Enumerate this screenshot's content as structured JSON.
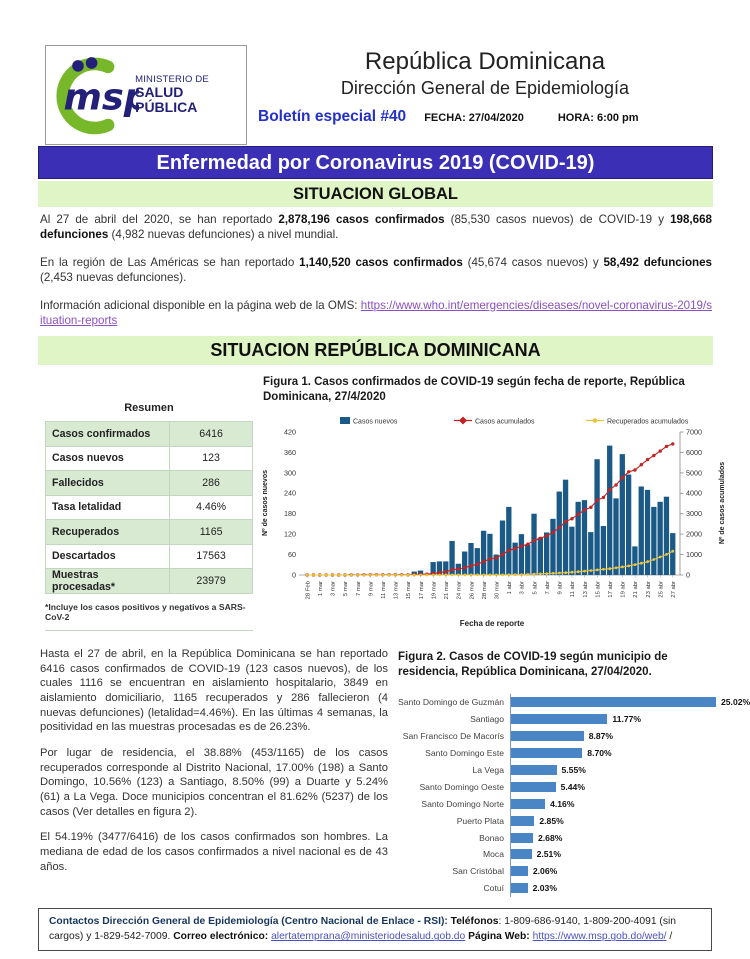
{
  "header": {
    "logo": {
      "acronym": "msp",
      "line1": "MINISTERIO DE",
      "line2": "SALUD PÚBLICA"
    },
    "title": "República Dominicana",
    "subtitle": "Dirección General de Epidemiología",
    "bulletin": "Boletín especial #40",
    "date_label": "FECHA: 27/04/2020",
    "time_label": "HORA: 6:00 pm"
  },
  "banners": {
    "main": "Enfermedad por Coronavirus 2019 (COVID-19)",
    "global": "SITUACION GLOBAL",
    "dominican": "SITUACION REPÚBLICA DOMINICANA"
  },
  "global_section": {
    "paragraphs": [
      [
        {
          "t": "Al 27 de abril del 2020, se han reportado ",
          "s": "p"
        },
        {
          "t": "2,878,196 casos confirmados",
          "s": "b"
        },
        {
          "t": " (85,530 casos nuevos) de COVID-19 y ",
          "s": "p"
        },
        {
          "t": "198,668 defunciones",
          "s": "b"
        },
        {
          "t": " (4,982 nuevas defunciones) a nivel mundial.",
          "s": "p"
        }
      ],
      [
        {
          "t": "En la región de Las Américas se han reportado ",
          "s": "p"
        },
        {
          "t": "1,140,520 casos confirmados",
          "s": "b"
        },
        {
          "t": " (45,674 casos nuevos) y ",
          "s": "p"
        },
        {
          "t": "58,492 defunciones",
          "s": "b"
        },
        {
          "t": " (2,453 nuevas defunciones).",
          "s": "p"
        }
      ],
      [
        {
          "t": "Información adicional disponible en la página web de la OMS: ",
          "s": "p"
        },
        {
          "t": "https://www.who.int/emergencies/diseases/novel-coronavirus-2019/situation-reports",
          "s": "l",
          "name": "oms-link"
        }
      ]
    ]
  },
  "resumen": {
    "title": "Resumen",
    "rows": [
      [
        "Casos confirmados",
        "6416"
      ],
      [
        "Casos nuevos",
        "123"
      ],
      [
        "Fallecidos",
        "286"
      ],
      [
        "Tasa letalidad",
        "4.46%"
      ],
      [
        "Recuperados",
        "1165"
      ],
      [
        "Descartados",
        "17563"
      ],
      [
        "Muestras procesadas*",
        "23979"
      ]
    ],
    "footnote": "*Incluye los casos positivos y negativos a SARS-CoV-2"
  },
  "dominican_section": {
    "paragraphs": [
      "Hasta el 27 de abril, en la República Dominicana se han reportado 6416 casos confirmados de COVID-19 (123 casos nuevos), de los cuales 1116 se encuentran en aislamiento hospitalario, 3849 en aislamiento domiciliario, 1165 recuperados y 286 fallecieron (4 nuevas defunciones) (letalidad=4.46%). En las últimas 4 semanas, la positividad en las muestras procesadas es de 26.23%.",
      "Por lugar de residencia, el 38.88% (453/1165) de los casos recuperados corresponde al Distrito Nacional, 17.00% (198) a Santo Domingo, 10.56% (123) a Santiago, 8.50% (99) a Duarte y 5.24% (61) a La Vega. Doce municipios concentran el 81.62% (5237) de los casos (Ver detalles en figura 2).",
      "El 54.19% (3477/6416) de los casos confirmados son hombres. La mediana de edad de los casos confirmados a nivel nacional es de 43 años."
    ]
  },
  "chart_data": [
    {
      "type": "bar",
      "title": "Figura 1. Casos confirmados de COVID-19 según fecha de reporte, República Dominicana, 27/4/2020",
      "xlabel": "Fecha de reporte",
      "ylabel_left": "Nº de casos nuevos",
      "ylabel_right": "Nº de casos acumulados",
      "ylim_left": [
        0,
        420
      ],
      "ytick_step_left": 60,
      "ylim_right": [
        0,
        7000
      ],
      "ytick_step_right": 1000,
      "x_tick_labels": [
        "28 Feb",
        "1 mar",
        "3 mar",
        "5 mar",
        "7 mar",
        "9 mar",
        "11 mar",
        "13 mar",
        "15 mar",
        "17 mar",
        "19 mar",
        "21 mar",
        "24 mar",
        "26 mar",
        "28 mar",
        "30 mar",
        "1 abr",
        "3 abr",
        "5 abr",
        "7 abr",
        "9 abr",
        "11 abr",
        "13 abr",
        "15 abr",
        "17 abr",
        "19 abr",
        "21 abr",
        "23 abr",
        "25 abr",
        "27 abr"
      ],
      "series": [
        {
          "name": "Casos nuevos",
          "type": "bar",
          "axis": "left",
          "color": "#1b5a86",
          "values": [
            0,
            0,
            1,
            0,
            1,
            0,
            0,
            3,
            0,
            3,
            0,
            0,
            0,
            0,
            0,
            3,
            0,
            10,
            13,
            4,
            38,
            40,
            40,
            100,
            33,
            69,
            94,
            79,
            130,
            121,
            60,
            160,
            200,
            95,
            120,
            90,
            180,
            110,
            125,
            165,
            245,
            280,
            142,
            215,
            220,
            126,
            340,
            144,
            380,
            225,
            355,
            295,
            84,
            260,
            250,
            200,
            215,
            230,
            123
          ]
        },
        {
          "name": "Casos acumulados",
          "type": "line",
          "axis": "right",
          "color": "#c42323",
          "values": [
            0,
            0,
            1,
            1,
            2,
            2,
            2,
            5,
            5,
            8,
            8,
            8,
            8,
            8,
            8,
            11,
            11,
            21,
            34,
            38,
            76,
            116,
            156,
            256,
            289,
            358,
            452,
            531,
            661,
            782,
            842,
            1002,
            1202,
            1297,
            1417,
            1507,
            1687,
            1797,
            1922,
            2087,
            2332,
            2612,
            2754,
            2969,
            3189,
            3315,
            3655,
            3799,
            4179,
            4404,
            4759,
            5054,
            5138,
            5398,
            5648,
            5848,
            6063,
            6293,
            6416
          ]
        },
        {
          "name": "Recuperados acumulados",
          "type": "line",
          "axis": "right",
          "color": "#e8c440",
          "values": [
            0,
            0,
            0,
            0,
            0,
            0,
            0,
            0,
            0,
            0,
            0,
            0,
            0,
            0,
            0,
            0,
            0,
            0,
            0,
            0,
            0,
            0,
            3,
            3,
            3,
            3,
            3,
            3,
            3,
            3,
            3,
            5,
            10,
            16,
            22,
            30,
            42,
            56,
            70,
            85,
            100,
            115,
            136,
            160,
            190,
            220,
            250,
            280,
            310,
            350,
            395,
            446,
            511,
            580,
            650,
            760,
            880,
            1010,
            1165
          ]
        }
      ]
    },
    {
      "type": "bar-horizontal",
      "title": "Figura 2. Casos de COVID-19 según municipio de residencia, República Dominicana, 27/04/2020.",
      "categories": [
        "Santo Domingo de Guzmán",
        "Santiago",
        "San Francisco De Macorís",
        "Santo Domingo Este",
        "La Vega",
        "Santo Domingo Oeste",
        "Santo Domingo Norte",
        "Puerto Plata",
        "Bonao",
        "Moca",
        "San Cristóbal",
        "Cotuí"
      ],
      "values": [
        25.02,
        11.77,
        8.87,
        8.7,
        5.55,
        5.44,
        4.16,
        2.85,
        2.68,
        2.51,
        2.06,
        2.03
      ],
      "value_labels": [
        "25.02%",
        "11.77%",
        "8.87%",
        "8.70%",
        "5.55%",
        "5.44%",
        "4.16%",
        "2.85%",
        "2.68%",
        "2.51%",
        "2.06%",
        "2.03%"
      ],
      "bar_color": "#4a86c5"
    }
  ],
  "footer": {
    "segments": [
      {
        "t": "Contactos Dirección General de Epidemiología (Centro Nacional de Enlace - RSI): ",
        "s": "bb"
      },
      {
        "t": "Teléfonos",
        "s": "b"
      },
      {
        "t": ": 1-809-686-9140, 1-809-200-4091 (sin cargos) y 1-829-542-7009. ",
        "s": "p"
      },
      {
        "t": "Correo electrónico: ",
        "s": "b"
      },
      {
        "t": "alertatemprana@ministeriodesalud.gob.do",
        "s": "l",
        "name": "email-link"
      },
      {
        "t": " ",
        "s": "p"
      },
      {
        "t": "Página Web: ",
        "s": "b"
      },
      {
        "t": "https://www.msp.gob.do/web/",
        "s": "l",
        "name": "web-link"
      },
      {
        "t": " /",
        "s": "p"
      }
    ]
  },
  "colors": {
    "banner_purple": "#3a2fb5",
    "banner_green": "#dff5c6",
    "table_row_green": "#d8ead2",
    "logo_navy": "#23207a",
    "logo_green": "#76b82a",
    "bulletin_blue": "#2430c8",
    "link_purple": "#8a50c0",
    "footer_link_blue": "#4a52c0",
    "footer_heading_blue": "#17365d"
  }
}
